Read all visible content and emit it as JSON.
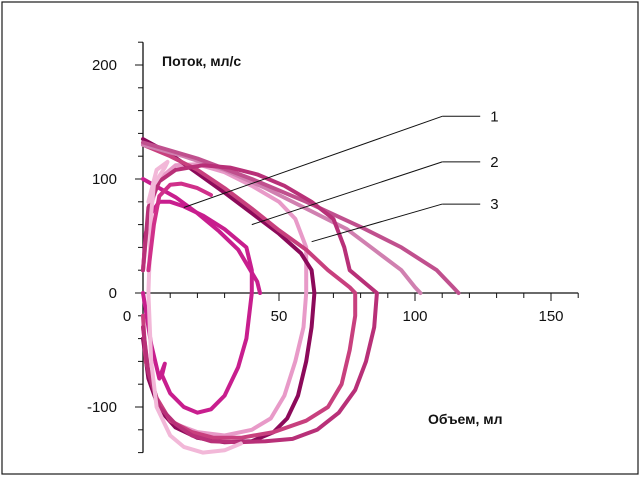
{
  "chart_data": {
    "type": "line",
    "ylabel": "Поток, мл/с",
    "xlabel": "Объем, мл",
    "xlim": [
      0,
      160
    ],
    "ylim": [
      -140,
      220
    ],
    "x_ticks": [
      0,
      50,
      100,
      150
    ],
    "y_ticks": [
      -100,
      0,
      100,
      200
    ],
    "x_tick_labels": [
      "0",
      "50",
      "100",
      "150"
    ],
    "y_tick_labels": [
      "-100",
      "0",
      "100",
      "200"
    ],
    "grid": false,
    "callouts": [
      {
        "label": "1",
        "points": [
          [
            110,
            155
          ],
          [
            15,
            75
          ]
        ]
      },
      {
        "label": "2",
        "points": [
          [
            110,
            115
          ],
          [
            40,
            60
          ]
        ]
      },
      {
        "label": "3",
        "points": [
          [
            110,
            78
          ],
          [
            62,
            45
          ]
        ]
      }
    ],
    "series": [
      {
        "color": "#c81e8e",
        "values": [
          [
            0,
            100
          ],
          [
            6,
            92
          ],
          [
            12,
            84
          ],
          [
            20,
            70
          ],
          [
            28,
            54
          ],
          [
            35,
            38
          ],
          [
            42,
            10
          ],
          [
            43,
            0
          ]
        ]
      },
      {
        "color": "#c81e8e",
        "values": [
          [
            0,
            20
          ],
          [
            1,
            52
          ],
          [
            3,
            70
          ],
          [
            6,
            80
          ],
          [
            10,
            80
          ],
          [
            15,
            76
          ],
          [
            22,
            68
          ],
          [
            30,
            56
          ],
          [
            38,
            40
          ],
          [
            40,
            20
          ],
          [
            40,
            0
          ],
          [
            38,
            -40
          ],
          [
            35,
            -65
          ],
          [
            30,
            -90
          ],
          [
            25,
            -102
          ],
          [
            20,
            -105
          ],
          [
            15,
            -100
          ],
          [
            10,
            -88
          ],
          [
            7,
            -72
          ],
          [
            8,
            -62
          ],
          [
            6,
            -75
          ],
          [
            3,
            -45
          ],
          [
            0,
            0
          ]
        ]
      },
      {
        "color": "#e89ac8",
        "values": [
          [
            0,
            20
          ],
          [
            2,
            70
          ],
          [
            6,
            100
          ],
          [
            12,
            112
          ],
          [
            20,
            113
          ],
          [
            30,
            106
          ],
          [
            40,
            94
          ],
          [
            50,
            80
          ],
          [
            56,
            65
          ],
          [
            60,
            40
          ],
          [
            60,
            0
          ],
          [
            59,
            -30
          ],
          [
            56,
            -60
          ],
          [
            52,
            -90
          ],
          [
            47,
            -110
          ],
          [
            40,
            -120
          ],
          [
            30,
            -125
          ],
          [
            20,
            -122
          ],
          [
            12,
            -115
          ],
          [
            6,
            -100
          ],
          [
            2,
            -70
          ],
          [
            0,
            -30
          ]
        ]
      },
      {
        "color": "#8c0a5a",
        "values": [
          [
            0,
            135
          ],
          [
            10,
            122
          ],
          [
            20,
            105
          ],
          [
            30,
            88
          ],
          [
            40,
            70
          ],
          [
            50,
            52
          ],
          [
            58,
            35
          ],
          [
            62,
            20
          ],
          [
            63,
            0
          ],
          [
            62,
            -30
          ],
          [
            60,
            -60
          ],
          [
            57,
            -90
          ],
          [
            53,
            -110
          ],
          [
            48,
            -122
          ],
          [
            40,
            -130
          ],
          [
            30,
            -131
          ],
          [
            20,
            -127
          ],
          [
            12,
            -118
          ],
          [
            6,
            -102
          ],
          [
            2,
            -75
          ],
          [
            0,
            -40
          ]
        ]
      },
      {
        "color": "#c8407e",
        "values": [
          [
            0,
            130
          ],
          [
            10,
            120
          ],
          [
            20,
            108
          ],
          [
            30,
            92
          ],
          [
            40,
            74
          ],
          [
            50,
            55
          ],
          [
            60,
            38
          ],
          [
            68,
            20
          ],
          [
            76,
            5
          ],
          [
            78,
            0
          ],
          [
            78,
            -20
          ],
          [
            76,
            -50
          ],
          [
            73,
            -80
          ],
          [
            68,
            -100
          ],
          [
            60,
            -112
          ],
          [
            48,
            -122
          ],
          [
            36,
            -127
          ],
          [
            26,
            -127
          ],
          [
            18,
            -122
          ],
          [
            10,
            -112
          ],
          [
            5,
            -92
          ],
          [
            1,
            -60
          ],
          [
            0,
            -20
          ]
        ]
      },
      {
        "color": "#d080b0",
        "values": [
          [
            0,
            130
          ],
          [
            15,
            120
          ],
          [
            30,
            108
          ],
          [
            45,
            92
          ],
          [
            60,
            74
          ],
          [
            75,
            56
          ],
          [
            85,
            38
          ],
          [
            95,
            20
          ],
          [
            100,
            5
          ],
          [
            102,
            0
          ]
        ]
      },
      {
        "color": "#c0508e",
        "values": [
          [
            0,
            132
          ],
          [
            20,
            118
          ],
          [
            40,
            100
          ],
          [
            60,
            80
          ],
          [
            80,
            58
          ],
          [
            95,
            40
          ],
          [
            108,
            20
          ],
          [
            114,
            5
          ],
          [
            116,
            0
          ]
        ]
      },
      {
        "color": "#b83078",
        "values": [
          [
            0,
            20
          ],
          [
            2,
            75
          ],
          [
            6,
            98
          ],
          [
            12,
            108
          ],
          [
            22,
            112
          ],
          [
            32,
            110
          ],
          [
            42,
            104
          ],
          [
            52,
            94
          ],
          [
            62,
            80
          ],
          [
            70,
            65
          ],
          [
            74,
            40
          ],
          [
            76,
            20
          ],
          [
            82,
            8
          ],
          [
            86,
            0
          ],
          [
            85,
            -30
          ],
          [
            82,
            -60
          ],
          [
            78,
            -85
          ],
          [
            72,
            -105
          ],
          [
            64,
            -120
          ],
          [
            55,
            -128
          ],
          [
            45,
            -130
          ],
          [
            35,
            -131
          ],
          [
            25,
            -130
          ],
          [
            18,
            -125
          ],
          [
            12,
            -115
          ],
          [
            6,
            -100
          ],
          [
            2,
            -70
          ],
          [
            0,
            -30
          ]
        ]
      },
      {
        "color": "#f2b8d8",
        "values": [
          [
            2,
            80
          ],
          [
            5,
            108
          ],
          [
            9,
            115
          ],
          [
            8,
            110
          ],
          [
            4,
            95
          ],
          [
            3,
            70
          ],
          [
            2,
            0
          ],
          [
            3,
            -60
          ],
          [
            5,
            -100
          ],
          [
            10,
            -125
          ],
          [
            15,
            -135
          ],
          [
            22,
            -140
          ],
          [
            30,
            -138
          ],
          [
            36,
            -132
          ]
        ]
      },
      {
        "color": "#d0308a",
        "values": [
          [
            2,
            20
          ],
          [
            4,
            60
          ],
          [
            6,
            85
          ],
          [
            10,
            95
          ],
          [
            14,
            96
          ],
          [
            20,
            92
          ],
          [
            25,
            86
          ]
        ]
      }
    ]
  }
}
